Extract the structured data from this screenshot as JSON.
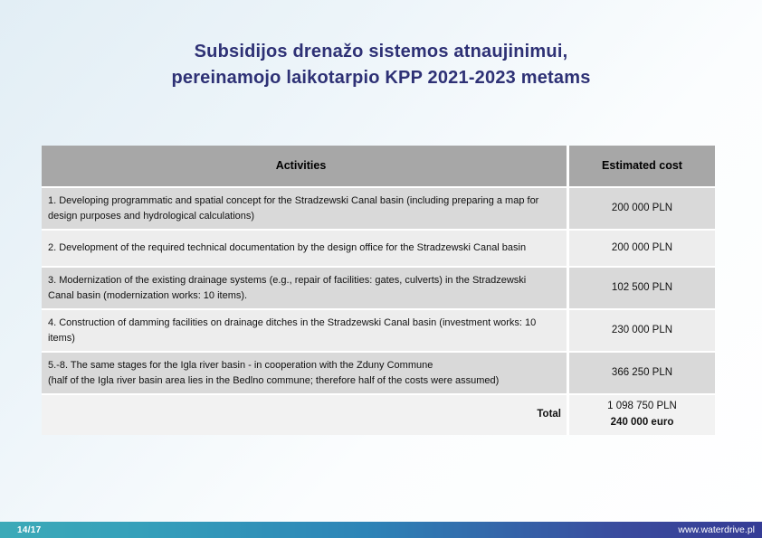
{
  "slide": {
    "title_line1": "Subsidijos drenažo sistemos atnaujinimui,",
    "title_line2": "pereinamojo laikotarpio KPP 2021-2023 metams"
  },
  "table": {
    "headers": [
      "Activities",
      "Estimated cost"
    ],
    "rows": [
      {
        "activity": "1. Developing programmatic and spatial concept for the Stradzewski Canal basin (including preparing a map for design purposes and hydrological calculations)",
        "cost": "200 000 PLN"
      },
      {
        "activity": "2. Development of the required technical documentation by the design office for the Stradzewski Canal basin",
        "cost": "200 000 PLN"
      },
      {
        "activity": "3. Modernization of the existing drainage systems (e.g., repair of facilities: gates, culverts) in the Stradzewski Canal basin (modernization works: 10 items).",
        "cost": "102 500 PLN"
      },
      {
        "activity": "4. Construction of damming facilities on drainage ditches in the Stradzewski Canal basin (investment works: 10 items)",
        "cost": "230 000 PLN"
      },
      {
        "activity": "5.-8. The same stages for the Igla river basin - in cooperation with the Zduny Commune\n(half of the Igla river basin area lies in the Bedlno commune; therefore half of the costs were assumed)",
        "cost": "366 250 PLN"
      }
    ],
    "total": {
      "label": "Total",
      "pln": "1 098 750 PLN",
      "euro": "240 000 euro"
    }
  },
  "footer": {
    "page": "14/17",
    "website": "www.waterdrive.pl"
  },
  "colors": {
    "title": "#2e3175",
    "table_header_bg": "#a7a7a7",
    "row_dark_bg": "#d9d9d9",
    "row_light_bg": "#ededed",
    "total_row_bg": "#f2f2f2",
    "footer_teal": "#3caab8",
    "footer_indigo": "#353c95",
    "background_blue": "#e2eef5"
  }
}
